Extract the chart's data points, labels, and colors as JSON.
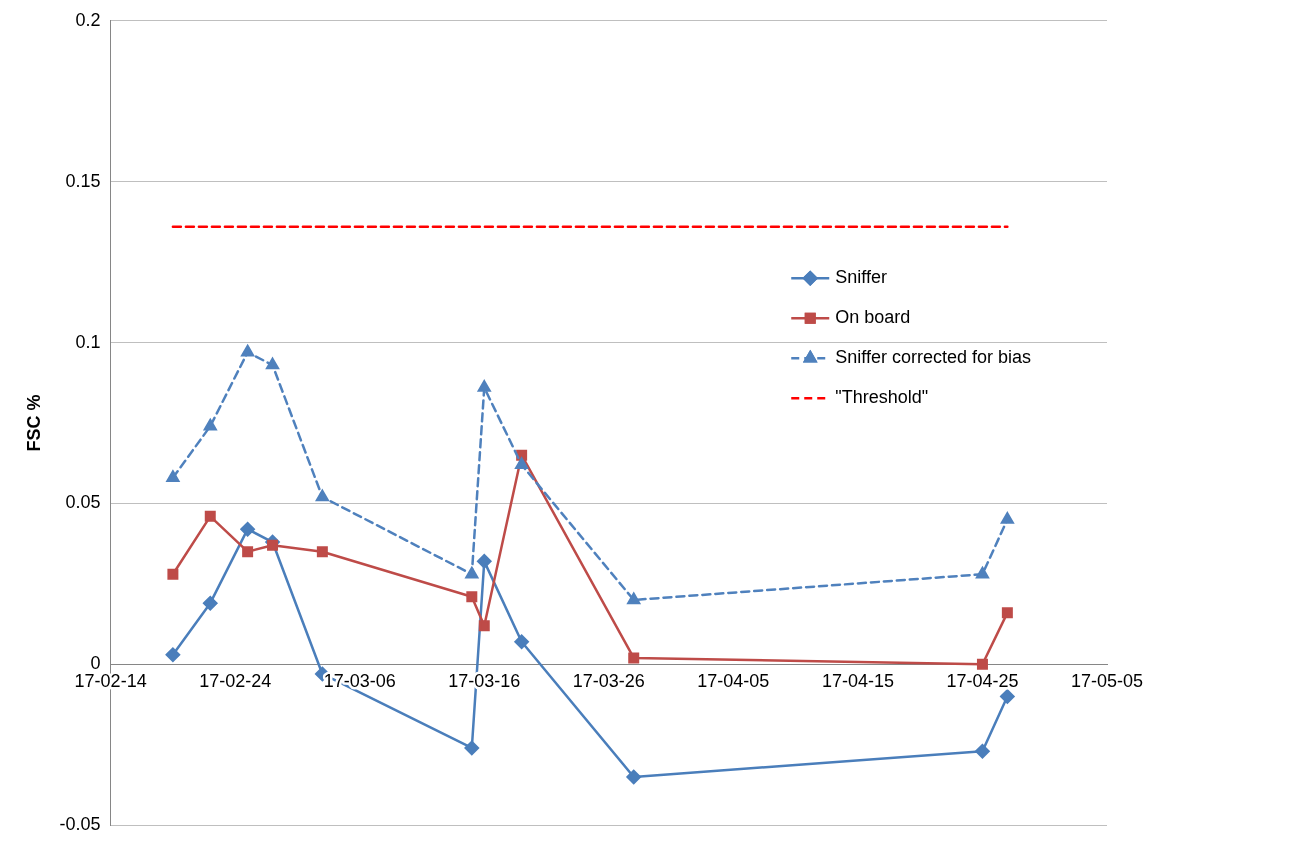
{
  "chart_data": {
    "type": "line",
    "ylabel": "FSC %",
    "x": [
      "--02-19",
      "--02-22",
      "--02-25",
      "--02-27",
      "--03-03",
      "--03-15",
      "--03-16",
      "--03-19",
      "--03-28",
      "--04-25",
      "--04-27"
    ],
    "series": [
      {
        "name": "Sniffer",
        "color": "#4a7ebb",
        "marker": "diamond",
        "line_style": "solid",
        "values": [
          0.003,
          0.019,
          0.042,
          0.038,
          -0.003,
          -0.026,
          0.032,
          0.007,
          -0.035,
          -0.027,
          -0.01
        ]
      },
      {
        "name": "On board",
        "color": "#be4b48",
        "marker": "square",
        "line_style": "solid",
        "values": [
          0.028,
          0.046,
          0.035,
          0.037,
          0.035,
          0.021,
          0.012,
          0.065,
          0.002,
          0.0,
          0.016
        ]
      },
      {
        "name": "Sniffer corrected for bias",
        "color": "#4f81bd",
        "marker": "triangle",
        "line_style": "dashed",
        "values": [
          0.058,
          0.074,
          0.097,
          0.093,
          0.052,
          0.028,
          0.086,
          0.062,
          0.02,
          0.028,
          0.045
        ]
      },
      {
        "name": "\"Threshold\"",
        "color": "#ff0000",
        "marker": "none",
        "line_style": "dashed",
        "x": [
          "--02-19",
          "--04-27"
        ],
        "values": [
          0.136,
          0.136
        ]
      }
    ],
    "xlim": [
      "--02-14",
      "--05-05"
    ],
    "xticks": [
      {
        "value": "--02-14",
        "label": "17-02-14"
      },
      {
        "value": "--02-24",
        "label": "17-02-24"
      },
      {
        "value": "--03-06",
        "label": "17-03-06"
      },
      {
        "value": "--03-16",
        "label": "17-03-16"
      },
      {
        "value": "--03-26",
        "label": "17-03-26"
      },
      {
        "value": "--04-05",
        "label": "17-04-05"
      },
      {
        "value": "--04-15",
        "label": "17-04-15"
      },
      {
        "value": "--04-25",
        "label": "17-04-25"
      },
      {
        "value": "--05-05",
        "label": "17-05-05"
      }
    ],
    "ylim": [
      -0.05,
      0.2
    ],
    "yticks": [
      -0.05,
      0,
      0.05,
      0.1,
      0.15,
      0.2
    ],
    "grid": "y",
    "legend": "right"
  }
}
